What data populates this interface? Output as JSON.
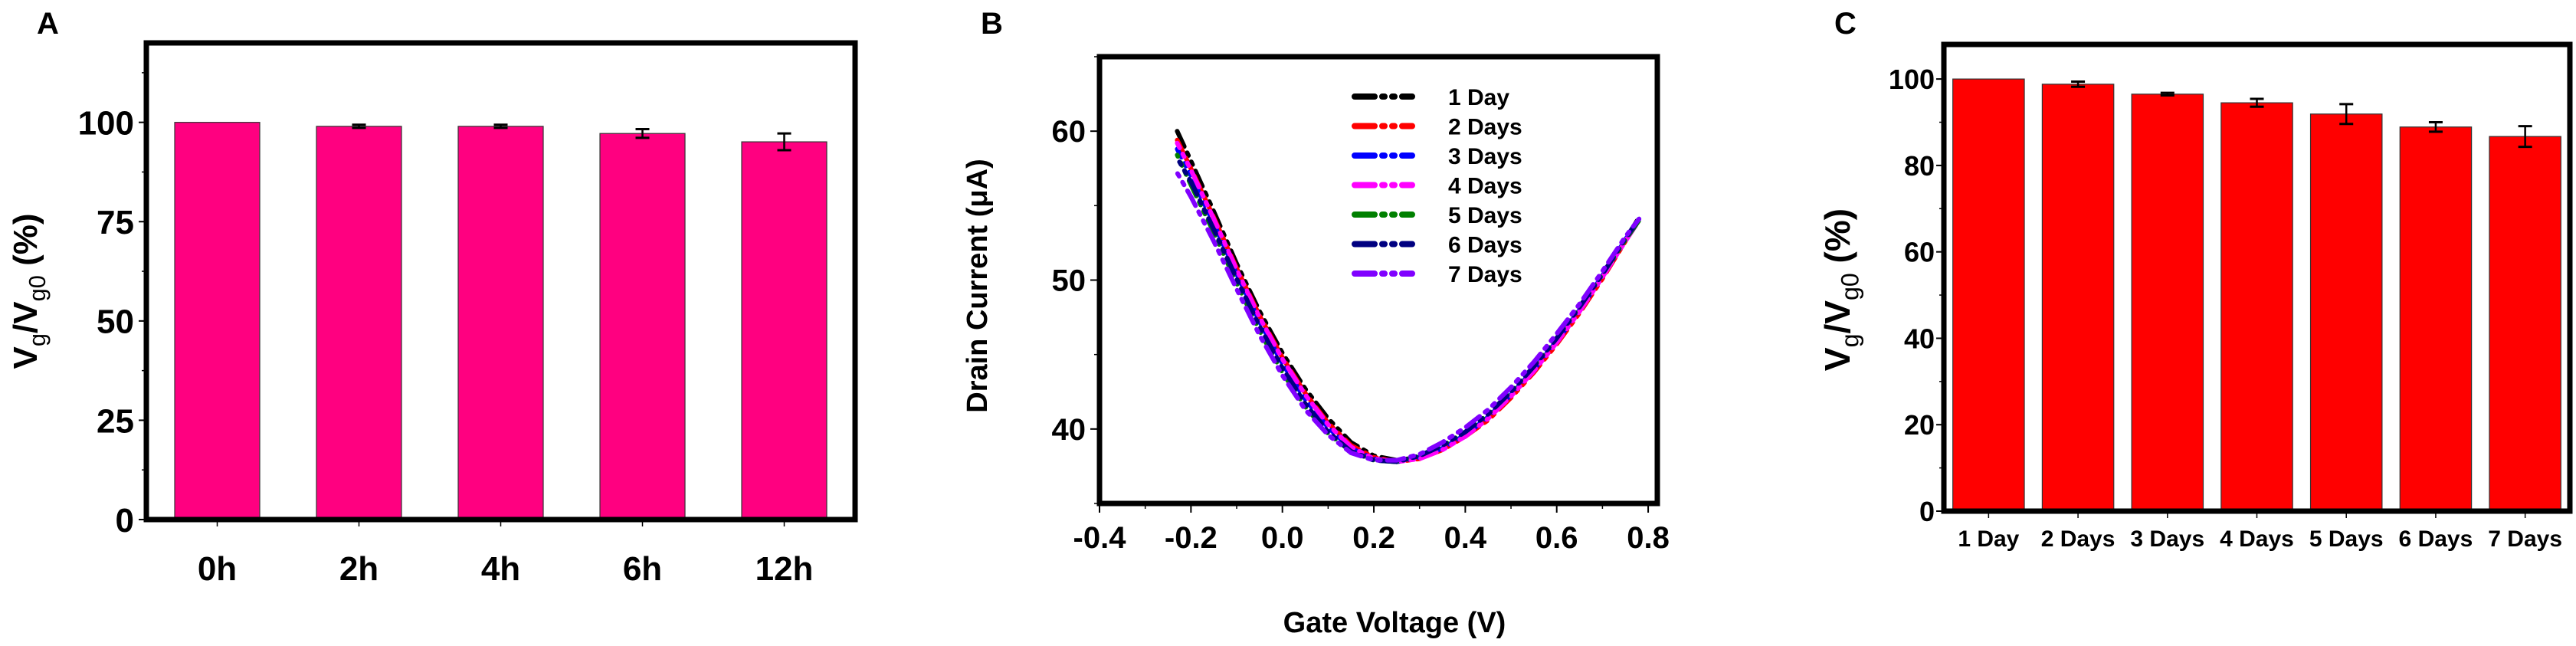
{
  "chart_data": [
    {
      "panel": "A",
      "type": "bar",
      "categories": [
        "0h",
        "2h",
        "4h",
        "6h",
        "12h"
      ],
      "values": [
        100,
        99.0,
        99.0,
        97.2,
        95.1
      ],
      "errors": [
        0,
        0.4,
        0.4,
        1.1,
        2.1
      ],
      "ylabel_parts": [
        {
          "t": "V"
        },
        {
          "t": "g",
          "sub": true
        },
        {
          "t": "/V"
        },
        {
          "t": "g0",
          "sub": true
        },
        {
          "t": " (%)"
        }
      ],
      "xlabel": "",
      "ylim": [
        0,
        120
      ],
      "yticks": [
        0,
        25,
        50,
        75,
        100
      ],
      "ytick_labels": [
        "0",
        "25",
        "50",
        "75",
        "100"
      ],
      "bar_color": "#ff0080",
      "grid": false
    },
    {
      "panel": "B",
      "type": "line",
      "xlabel": "Gate Voltage (V)",
      "ylabel": "Drain Current (μA)",
      "xlim": [
        -0.4,
        0.82
      ],
      "ylim": [
        35,
        65
      ],
      "xticks": [
        -0.4,
        -0.2,
        0.0,
        0.2,
        0.4,
        0.6,
        0.8
      ],
      "xtick_labels": [
        "-0.4",
        "-0.2",
        "0.0",
        "0.2",
        "0.4",
        "0.6",
        "0.8"
      ],
      "yticks": [
        40,
        50,
        60
      ],
      "ytick_labels": [
        "40",
        "50",
        "60"
      ],
      "legend_position": "top-right",
      "grid": false,
      "x": [
        -0.23,
        -0.2,
        -0.15,
        -0.1,
        -0.05,
        0,
        0.05,
        0.1,
        0.15,
        0.2,
        0.25,
        0.3,
        0.35,
        0.4,
        0.45,
        0.5,
        0.55,
        0.6,
        0.65,
        0.7,
        0.75,
        0.78
      ],
      "series": [
        {
          "name": "1 Day",
          "color": "#000000",
          "values": [
            60.0,
            58.0,
            54.6,
            51.1,
            47.9,
            45.1,
            42.7,
            40.7,
            39.1,
            38.2,
            37.9,
            38.1,
            38.7,
            39.5,
            40.7,
            42.2,
            43.9,
            45.8,
            47.9,
            50.2,
            52.7,
            54.2
          ]
        },
        {
          "name": "2 Days",
          "color": "#ff0000",
          "values": [
            59.4,
            57.5,
            54.2,
            50.8,
            47.6,
            44.8,
            42.4,
            40.4,
            38.9,
            38.1,
            37.8,
            38.0,
            38.6,
            39.5,
            40.6,
            42.1,
            43.8,
            45.7,
            47.8,
            50.1,
            52.6,
            54.1
          ]
        },
        {
          "name": "3 Days",
          "color": "#0000ff",
          "values": [
            58.8,
            57.0,
            53.8,
            50.4,
            47.2,
            44.4,
            42.0,
            40.1,
            38.7,
            38.0,
            37.8,
            38.1,
            38.7,
            39.6,
            40.8,
            42.3,
            44.0,
            45.9,
            48.0,
            50.3,
            52.7,
            54.1
          ]
        },
        {
          "name": "4 Days",
          "color": "#ff00ff",
          "values": [
            59.2,
            57.4,
            54.1,
            50.7,
            47.5,
            44.7,
            42.3,
            40.3,
            38.8,
            38.0,
            37.8,
            38.0,
            38.6,
            39.5,
            40.7,
            42.2,
            43.9,
            45.8,
            47.9,
            50.2,
            52.6,
            54.0
          ]
        },
        {
          "name": "5 Days",
          "color": "#008000",
          "values": [
            58.4,
            56.4,
            53.2,
            49.8,
            46.6,
            43.8,
            41.5,
            39.7,
            38.5,
            37.9,
            37.8,
            38.2,
            38.9,
            39.8,
            41.0,
            42.5,
            44.2,
            46.1,
            48.2,
            50.4,
            52.7,
            54.0
          ]
        },
        {
          "name": "6 Days",
          "color": "#000080",
          "values": [
            58.2,
            56.6,
            53.4,
            50.1,
            46.9,
            44.1,
            41.7,
            39.8,
            38.5,
            37.9,
            37.8,
            38.2,
            38.9,
            39.8,
            41.0,
            42.5,
            44.2,
            46.1,
            48.2,
            50.4,
            52.8,
            54.1
          ]
        },
        {
          "name": "7 Days",
          "color": "#8000ff",
          "values": [
            57.2,
            55.6,
            52.6,
            49.4,
            46.3,
            43.6,
            41.3,
            39.6,
            38.4,
            37.9,
            37.9,
            38.3,
            39.1,
            40.1,
            41.3,
            42.8,
            44.5,
            46.4,
            48.4,
            50.6,
            52.9,
            54.1
          ]
        }
      ]
    },
    {
      "panel": "C",
      "type": "bar",
      "categories": [
        "1 Day",
        "2 Days",
        "3 Days",
        "4 Days",
        "5 Days",
        "6 Days",
        "7 Days"
      ],
      "values": [
        100,
        98.8,
        96.5,
        94.5,
        91.9,
        88.9,
        86.7
      ],
      "errors": [
        0,
        0.6,
        0.3,
        0.9,
        2.3,
        1.1,
        2.4
      ],
      "ylabel_parts": [
        {
          "t": "V"
        },
        {
          "t": "g",
          "sub": true
        },
        {
          "t": "/V"
        },
        {
          "t": "g0",
          "sub": true
        },
        {
          "t": " (%)"
        }
      ],
      "xlabel": "",
      "ylim": [
        0,
        108
      ],
      "yticks": [
        0,
        20,
        40,
        60,
        80,
        100
      ],
      "ytick_labels": [
        "0",
        "20",
        "40",
        "60",
        "80",
        "100"
      ],
      "bar_color": "#ff0000",
      "grid": false
    }
  ]
}
